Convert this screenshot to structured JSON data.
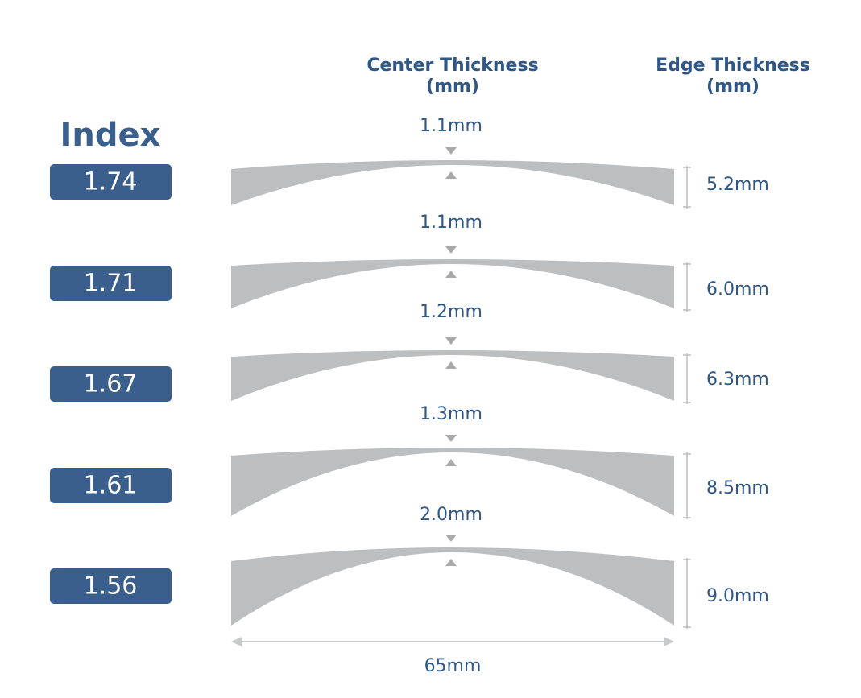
{
  "header": {
    "center": [
      "Center Thickness",
      "(mm)"
    ],
    "edge": [
      "Edge Thickness",
      "(mm)"
    ],
    "index": "Index"
  },
  "rows": [
    {
      "index": "1.74",
      "center": "1.1mm",
      "edge": "5.2mm"
    },
    {
      "index": "1.71",
      "center": "1.1mm",
      "edge": "6.0mm"
    },
    {
      "index": "1.67",
      "center": "1.2mm",
      "edge": "6.3mm"
    },
    {
      "index": "1.61",
      "center": "1.3mm",
      "edge": "8.5mm"
    },
    {
      "index": "1.56",
      "center": "2.0mm",
      "edge": "9.0mm"
    }
  ],
  "width": "65mm"
}
